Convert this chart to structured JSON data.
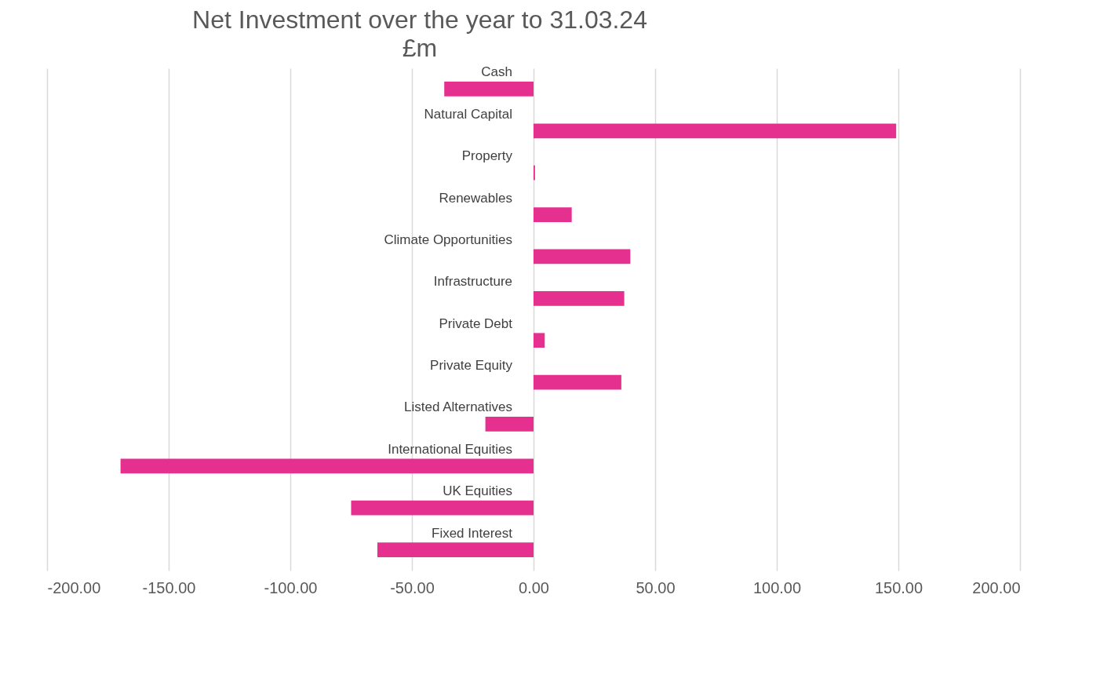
{
  "chart_data": {
    "type": "bar",
    "orientation": "horizontal",
    "title": "Net Investment over the year to 31.03.24",
    "subtitle": "£m",
    "categories": [
      "Cash",
      "Natural Capital",
      "Property",
      "Renewables",
      "Climate Opportunities",
      "Infrastructure",
      "Private Debt",
      "Private Equity",
      "Listed Alternatives",
      "International Equities",
      "UK Equities",
      "Fixed Interest"
    ],
    "values": [
      -36.7,
      149.1,
      0.6,
      15.7,
      39.8,
      37.3,
      4.6,
      36.1,
      -19.8,
      -169.8,
      -75,
      -64.2
    ],
    "color": "#e5308f",
    "xlim": [
      -200,
      200
    ],
    "xticks": [
      {
        "value": -200,
        "label": "-200.00"
      },
      {
        "value": -150,
        "label": "-150.00"
      },
      {
        "value": -100,
        "label": "-100.00"
      },
      {
        "value": -50,
        "label": "-50.00"
      },
      {
        "value": 0,
        "label": "0.00"
      },
      {
        "value": 50,
        "label": "50.00"
      },
      {
        "value": 100,
        "label": "100.00"
      },
      {
        "value": 150,
        "label": "150.00"
      },
      {
        "value": 200,
        "label": "200.00"
      }
    ],
    "grid": "x"
  }
}
